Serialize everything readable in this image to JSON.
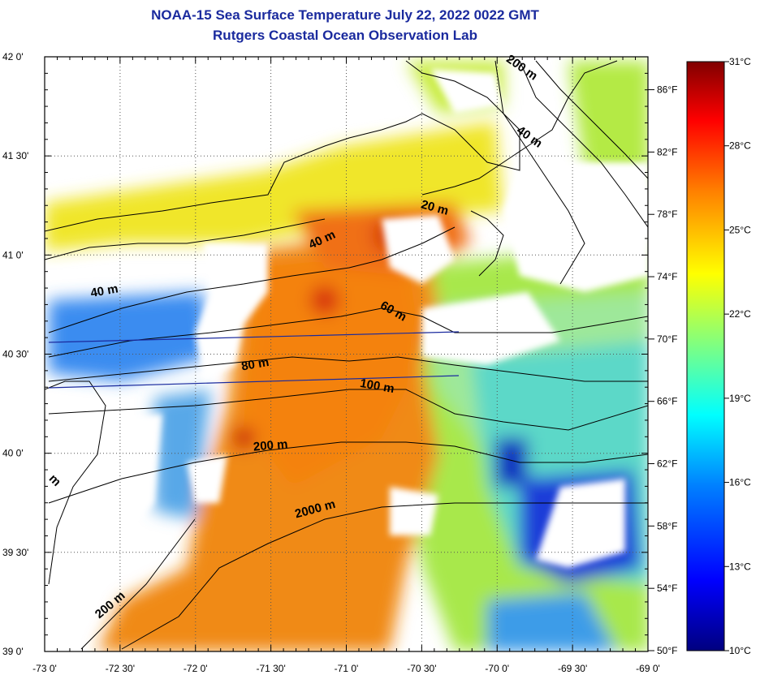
{
  "title": "NOAA-15 Sea Surface Temperature July 22, 2022 0022 GMT",
  "subtitle": "Rutgers Coastal Ocean Observation Lab",
  "axes": {
    "lon_labels": [
      "-73 0'",
      "-72 30'",
      "-72 0'",
      "-71 30'",
      "-71 0'",
      "-70 30'",
      "-70 0'",
      "-69 30'",
      "-69 0'"
    ],
    "lat_labels": [
      "42 0'",
      "41 30'",
      "41 0'",
      "40 30'",
      "40 0'",
      "39 30'",
      "39 0'"
    ],
    "lon_range": [
      -73.0,
      -69.0
    ],
    "lat_range": [
      39.0,
      42.0
    ]
  },
  "contours": [
    {
      "label": "200 m",
      "lon": -69.85,
      "lat": 41.93
    },
    {
      "label": "40 m",
      "lon": -69.8,
      "lat": 41.58
    },
    {
      "label": "20 m",
      "lon": -70.42,
      "lat": 41.22
    },
    {
      "label": "40 m",
      "lon": -71.15,
      "lat": 41.06
    },
    {
      "label": "40 m",
      "lon": -72.6,
      "lat": 40.8
    },
    {
      "label": "60 m",
      "lon": -70.7,
      "lat": 40.7
    },
    {
      "label": "80 m",
      "lon": -71.6,
      "lat": 40.43
    },
    {
      "label": "100 m",
      "lon": -70.8,
      "lat": 40.32
    },
    {
      "label": "200 m",
      "lon": -71.5,
      "lat": 40.02
    },
    {
      "label": "2000 m",
      "lon": -71.2,
      "lat": 39.7
    },
    {
      "label": "200 m",
      "lon": -72.55,
      "lat": 39.22
    },
    {
      "label": "m",
      "lon": -72.95,
      "lat": 39.85
    }
  ],
  "colorbar": {
    "celsius_labels": [
      "31°C",
      "28°C",
      "25°C",
      "22°C",
      "19°C",
      "16°C",
      "13°C",
      "10°C"
    ],
    "fahrenheit_labels": [
      "86°F",
      "82°F",
      "78°F",
      "74°F",
      "70°F",
      "66°F",
      "62°F",
      "58°F",
      "54°F",
      "50°F"
    ],
    "range_c": [
      10,
      31
    ],
    "colors": [
      "#00007f",
      "#0000ff",
      "#0080ff",
      "#00ffff",
      "#80ff80",
      "#ffff00",
      "#ff8000",
      "#ff0000",
      "#800000"
    ]
  }
}
